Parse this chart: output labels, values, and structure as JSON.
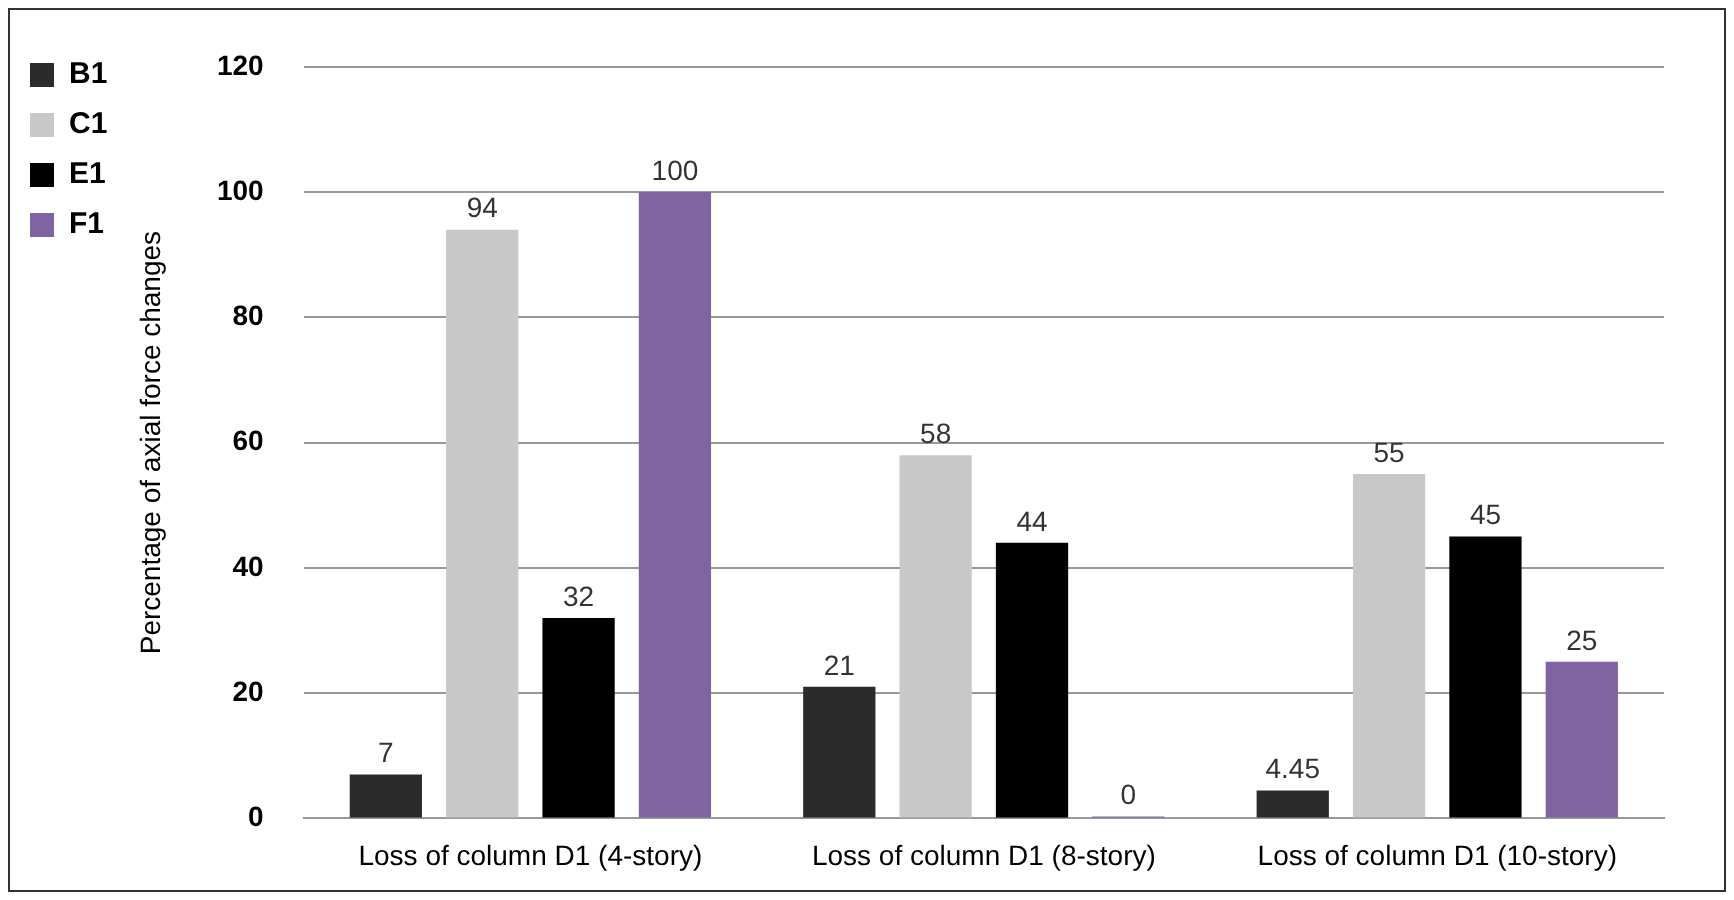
{
  "chart_data": {
    "type": "bar",
    "ylabel": "Percentage of axial force changes",
    "categories": [
      "Loss of column D1 (4-story)",
      "Loss of column D1 (8-story)",
      "Loss of column D1 (10-story)"
    ],
    "series": [
      {
        "name": "B1",
        "color": "#2b2b2b",
        "values": [
          7,
          21,
          4.45
        ]
      },
      {
        "name": "C1",
        "color": "#c8c8c8",
        "values": [
          94,
          58,
          55
        ]
      },
      {
        "name": "E1",
        "color": "#000000",
        "values": [
          32,
          44,
          45
        ]
      },
      {
        "name": "F1",
        "color": "#8064a2",
        "values": [
          100,
          0,
          25
        ]
      }
    ],
    "ylim": [
      0,
      120
    ],
    "yticks": [
      0,
      20,
      40,
      60,
      80,
      100,
      120
    ],
    "grid": "y",
    "legend": "top left",
    "data_labels": true
  }
}
